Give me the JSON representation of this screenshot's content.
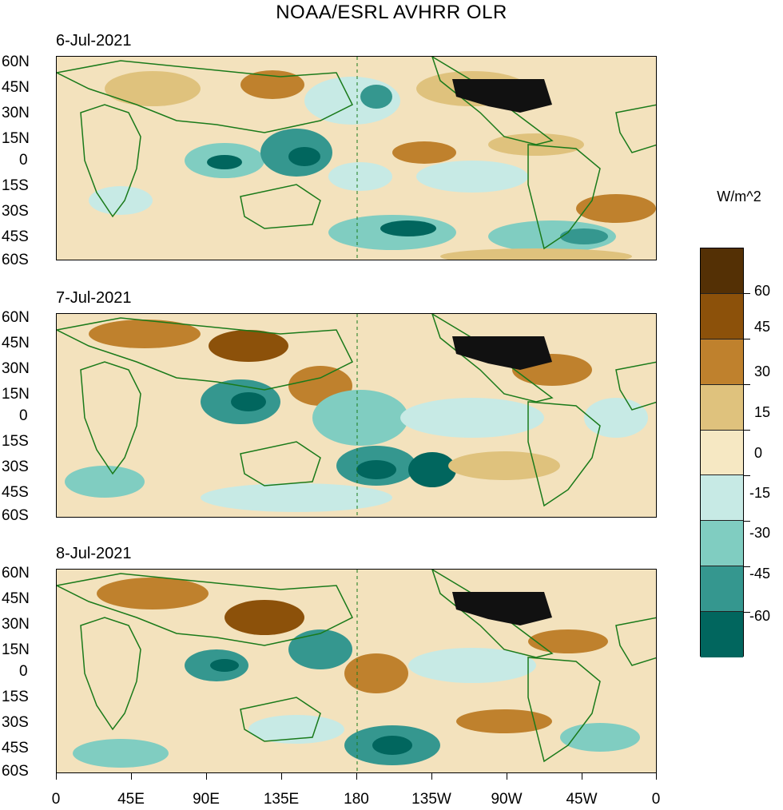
{
  "title": "NOAA/ESRL AVHRR OLR",
  "panels": [
    {
      "date": "6-Jul-2021"
    },
    {
      "date": "7-Jul-2021"
    },
    {
      "date": "8-Jul-2021"
    }
  ],
  "lat_labels": [
    "60N",
    "45N",
    "30N",
    "15N",
    "0",
    "15S",
    "30S",
    "45S",
    "60S"
  ],
  "lon_labels": [
    "0",
    "45E",
    "90E",
    "135E",
    "180",
    "135W",
    "90W",
    "45W",
    "0"
  ],
  "colorbar": {
    "title": "W/m^2",
    "labels": [
      "60",
      "45",
      "30",
      "15",
      "0",
      "-15",
      "-30",
      "-45",
      "-60"
    ],
    "colors": [
      "#543005",
      "#8c510a",
      "#bf812d",
      "#dfc27d",
      "#f6e8c3",
      "#c7eae5",
      "#80cdc1",
      "#35978f",
      "#01665e",
      "#003c30"
    ]
  }
}
